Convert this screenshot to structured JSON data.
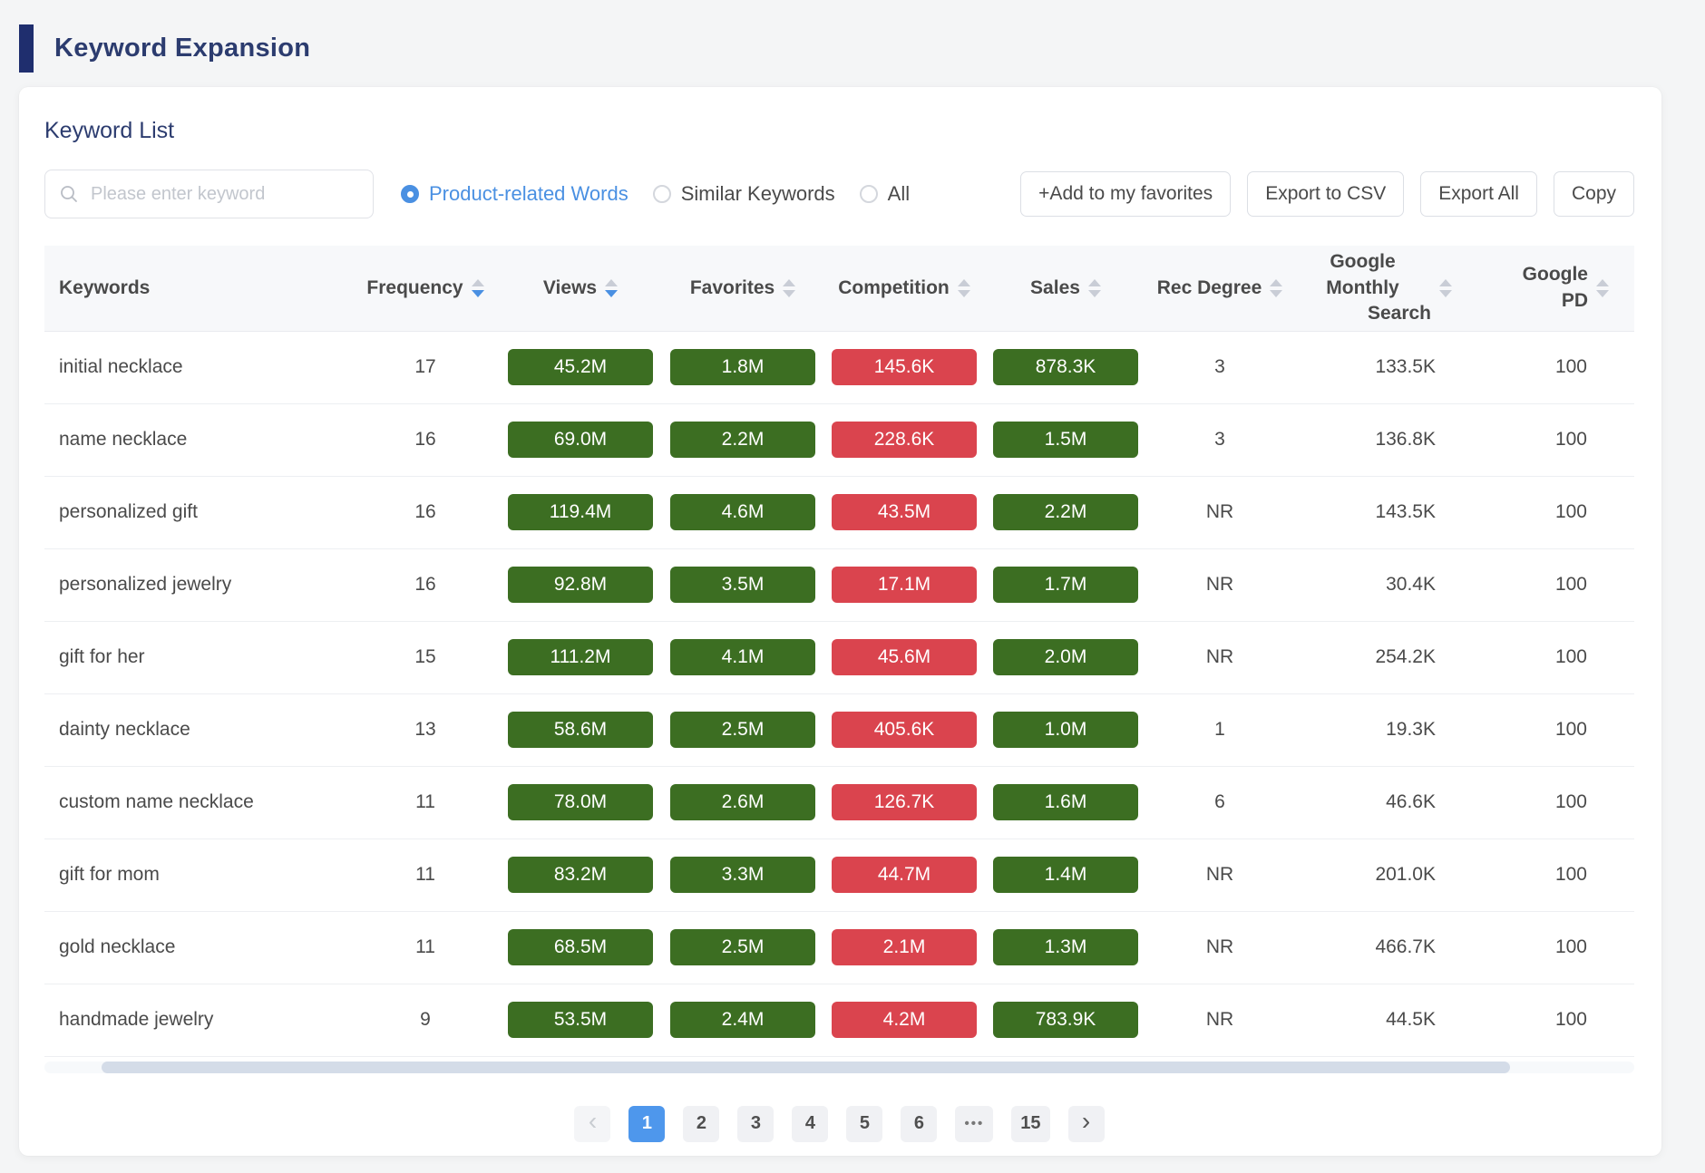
{
  "page": {
    "title": "Keyword Expansion"
  },
  "card": {
    "title": "Keyword List"
  },
  "search": {
    "placeholder": "Please enter keyword"
  },
  "filters": {
    "options": [
      {
        "label": "Product-related Words",
        "selected": true
      },
      {
        "label": "Similar Keywords",
        "selected": false
      },
      {
        "label": "All",
        "selected": false
      }
    ]
  },
  "actions": {
    "add_favorites": "+Add to my favorites",
    "export_csv": "Export to CSV",
    "export_all": "Export All",
    "copy": "Copy"
  },
  "table": {
    "columns": [
      {
        "label": "Keywords",
        "lines": [
          "Keywords"
        ],
        "sortable": false,
        "sort": "none"
      },
      {
        "label": "Frequency",
        "lines": [
          "Frequency"
        ],
        "sortable": true,
        "sort": "desc"
      },
      {
        "label": "Views",
        "lines": [
          "Views"
        ],
        "sortable": true,
        "sort": "desc"
      },
      {
        "label": "Favorites",
        "lines": [
          "Favorites"
        ],
        "sortable": true,
        "sort": "none"
      },
      {
        "label": "Competition",
        "lines": [
          "Competition"
        ],
        "sortable": true,
        "sort": "none"
      },
      {
        "label": "Sales",
        "lines": [
          "Sales"
        ],
        "sortable": true,
        "sort": "none"
      },
      {
        "label": "Rec Degree",
        "lines": [
          "Rec Degree"
        ],
        "sortable": true,
        "sort": "none"
      },
      {
        "label": "Google Monthly Search",
        "lines": [
          "Google Monthly",
          "Search"
        ],
        "sortable": true,
        "sort": "none"
      },
      {
        "label": "Google PD",
        "lines": [
          "Google",
          "PD"
        ],
        "sortable": true,
        "sort": "none"
      }
    ],
    "row_cells": [
      {
        "key": "keyword",
        "type": "text",
        "align": "left"
      },
      {
        "key": "frequency",
        "type": "text",
        "align": "center"
      },
      {
        "key": "views",
        "type": "badge",
        "badge": "green"
      },
      {
        "key": "favorites",
        "type": "badge",
        "badge": "green"
      },
      {
        "key": "competition",
        "type": "badge",
        "badge": "red"
      },
      {
        "key": "sales",
        "type": "badge",
        "badge": "green"
      },
      {
        "key": "rec_degree",
        "type": "text",
        "align": "center"
      },
      {
        "key": "google_monthly_search",
        "type": "text",
        "align": "right"
      },
      {
        "key": "google_pd",
        "type": "text",
        "align": "right"
      }
    ],
    "rows": [
      {
        "keyword": "initial necklace",
        "frequency": "17",
        "views": "45.2M",
        "favorites": "1.8M",
        "competition": "145.6K",
        "sales": "878.3K",
        "rec_degree": "3",
        "google_monthly_search": "133.5K",
        "google_pd": "100"
      },
      {
        "keyword": "name necklace",
        "frequency": "16",
        "views": "69.0M",
        "favorites": "2.2M",
        "competition": "228.6K",
        "sales": "1.5M",
        "rec_degree": "3",
        "google_monthly_search": "136.8K",
        "google_pd": "100"
      },
      {
        "keyword": "personalized gift",
        "frequency": "16",
        "views": "119.4M",
        "favorites": "4.6M",
        "competition": "43.5M",
        "sales": "2.2M",
        "rec_degree": "NR",
        "google_monthly_search": "143.5K",
        "google_pd": "100"
      },
      {
        "keyword": "personalized jewelry",
        "frequency": "16",
        "views": "92.8M",
        "favorites": "3.5M",
        "competition": "17.1M",
        "sales": "1.7M",
        "rec_degree": "NR",
        "google_monthly_search": "30.4K",
        "google_pd": "100"
      },
      {
        "keyword": "gift for her",
        "frequency": "15",
        "views": "111.2M",
        "favorites": "4.1M",
        "competition": "45.6M",
        "sales": "2.0M",
        "rec_degree": "NR",
        "google_monthly_search": "254.2K",
        "google_pd": "100"
      },
      {
        "keyword": "dainty necklace",
        "frequency": "13",
        "views": "58.6M",
        "favorites": "2.5M",
        "competition": "405.6K",
        "sales": "1.0M",
        "rec_degree": "1",
        "google_monthly_search": "19.3K",
        "google_pd": "100"
      },
      {
        "keyword": "custom name necklace",
        "frequency": "11",
        "views": "78.0M",
        "favorites": "2.6M",
        "competition": "126.7K",
        "sales": "1.6M",
        "rec_degree": "6",
        "google_monthly_search": "46.6K",
        "google_pd": "100"
      },
      {
        "keyword": "gift for mom",
        "frequency": "11",
        "views": "83.2M",
        "favorites": "3.3M",
        "competition": "44.7M",
        "sales": "1.4M",
        "rec_degree": "NR",
        "google_monthly_search": "201.0K",
        "google_pd": "100"
      },
      {
        "keyword": "gold necklace",
        "frequency": "11",
        "views": "68.5M",
        "favorites": "2.5M",
        "competition": "2.1M",
        "sales": "1.3M",
        "rec_degree": "NR",
        "google_monthly_search": "466.7K",
        "google_pd": "100"
      },
      {
        "keyword": "handmade jewelry",
        "frequency": "9",
        "views": "53.5M",
        "favorites": "2.4M",
        "competition": "4.2M",
        "sales": "783.9K",
        "rec_degree": "NR",
        "google_monthly_search": "44.5K",
        "google_pd": "100"
      }
    ]
  },
  "pagination": {
    "prev_symbol": "‹",
    "next_symbol": "›",
    "items": [
      {
        "kind": "prev"
      },
      {
        "kind": "page",
        "label": "1",
        "active": true
      },
      {
        "kind": "page",
        "label": "2"
      },
      {
        "kind": "page",
        "label": "3"
      },
      {
        "kind": "page",
        "label": "4"
      },
      {
        "kind": "page",
        "label": "5"
      },
      {
        "kind": "page",
        "label": "6"
      },
      {
        "kind": "ellipsis",
        "label": "•••"
      },
      {
        "kind": "page",
        "label": "15"
      },
      {
        "kind": "next"
      }
    ]
  },
  "colors": {
    "accent_blue": "#4a90e2",
    "pagination_active": "#4e97ec",
    "badge_green": "#3c6e22",
    "badge_red": "#da444e",
    "navy_bar": "#1f2e6e",
    "title_text": "#2c3c6f"
  }
}
